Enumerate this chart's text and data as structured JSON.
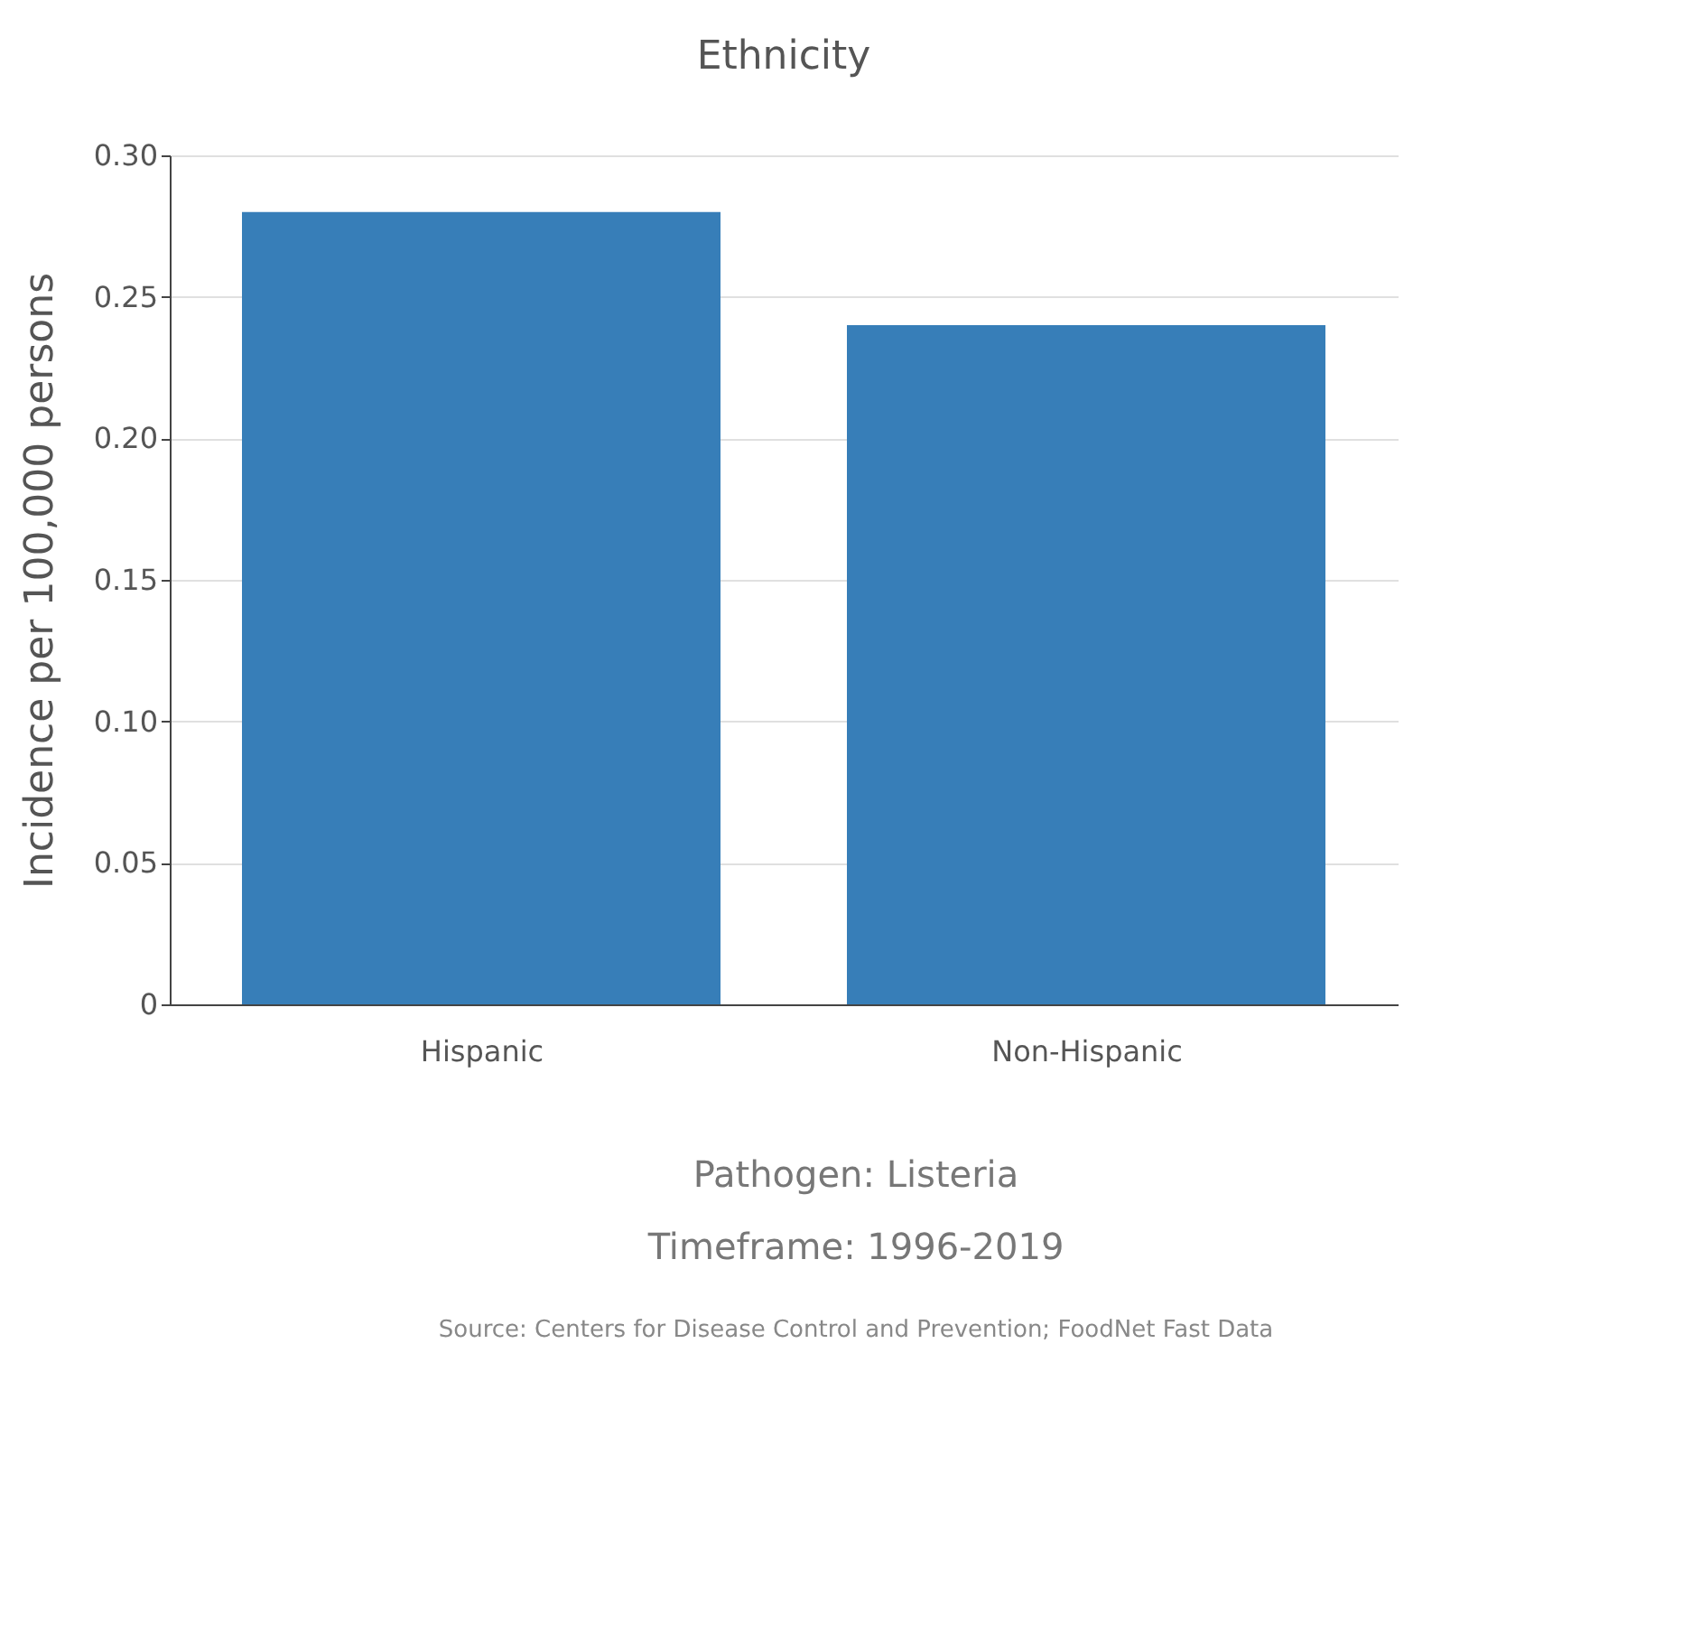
{
  "chart_data": {
    "type": "bar",
    "title": "Ethnicity",
    "ylabel": "Incidence per 100,000 persons",
    "categories": [
      "Hispanic",
      "Non-Hispanic"
    ],
    "values": [
      0.28,
      0.24
    ],
    "color": "#377eb8",
    "ylim": [
      0,
      0.3
    ],
    "yticks": [
      {
        "value": 0,
        "label": "0"
      },
      {
        "value": 0.05,
        "label": "0.05"
      },
      {
        "value": 0.1,
        "label": "0.10"
      },
      {
        "value": 0.15,
        "label": "0.15"
      },
      {
        "value": 0.2,
        "label": "0.20"
      },
      {
        "value": 0.25,
        "label": "0.25"
      },
      {
        "value": 0.3,
        "label": "0.30"
      }
    ],
    "grid": "y",
    "annotations": [
      "Pathogen: Listeria",
      "Timeframe: 1996-2019",
      "Source: Centers for Disease Control and Prevention; FoodNet Fast Data"
    ]
  }
}
